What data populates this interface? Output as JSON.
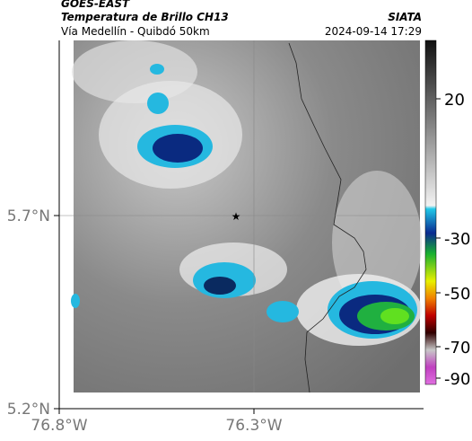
{
  "header": {
    "source": "GOES-EAST",
    "title": "Temperatura de Brillo CH13",
    "subtitle": "Vía Medellín - Quibdó 50km",
    "organization": "SIATA",
    "datetime": "2024-09-14 17:29"
  },
  "map": {
    "lat_labels": [
      "5.7°N",
      "5.2°N"
    ],
    "lon_labels": [
      "76.8°W",
      "76.3°W"
    ]
  },
  "colorbar": {
    "ticks": [
      20,
      -30,
      -50,
      -70,
      -90
    ]
  }
}
